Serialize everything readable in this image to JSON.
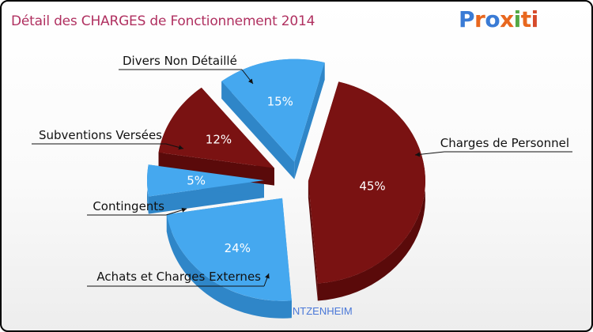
{
  "header": {
    "title": "Détail des CHARGES de Fonctionnement 2014"
  },
  "brand": {
    "name": "Proxiti",
    "letters": [
      {
        "ch": "P",
        "color": "#3a7bd5"
      },
      {
        "ch": "r",
        "color": "#e8671e"
      },
      {
        "ch": "o",
        "color": "#3a7bd5"
      },
      {
        "ch": "x",
        "color": "#e8671e"
      },
      {
        "ch": "i",
        "color": "#54a845"
      },
      {
        "ch": "t",
        "color": "#e8671e"
      },
      {
        "ch": "i",
        "color": "#d64a2a"
      }
    ]
  },
  "footer": {
    "commune": "WINTZENHEIM"
  },
  "chart_data": {
    "type": "pie",
    "title": "Détail des CHARGES de Fonctionnement 2014",
    "style": "3d-exploded",
    "slices": [
      {
        "label": "Charges de Personnel",
        "pct_label": "45%",
        "value": 45,
        "color": "#7a1212",
        "side": "#5a0a0a"
      },
      {
        "label": "Achats et Charges Externes",
        "pct_label": "24%",
        "value": 24,
        "color": "#45a8ef",
        "side": "#2f86c8"
      },
      {
        "label": "Contingents",
        "pct_label": "5%",
        "value": 5,
        "color": "#45a8ef",
        "side": "#2f86c8"
      },
      {
        "label": "Subventions Versées",
        "pct_label": "12%",
        "value": 12,
        "color": "#7a1212",
        "side": "#5a0a0a"
      },
      {
        "label": "Divers Non Détaillé",
        "pct_label": "15%",
        "value": 15,
        "color": "#45a8ef",
        "side": "#2f86c8"
      }
    ]
  }
}
